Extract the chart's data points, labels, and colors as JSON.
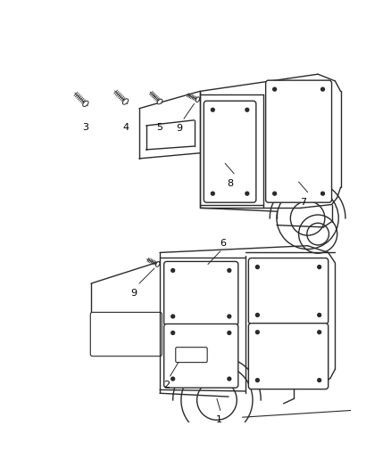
{
  "bg_color": "#ffffff",
  "line_color": "#2a2a2a",
  "label_color": "#000000",
  "lw": 1.0
}
